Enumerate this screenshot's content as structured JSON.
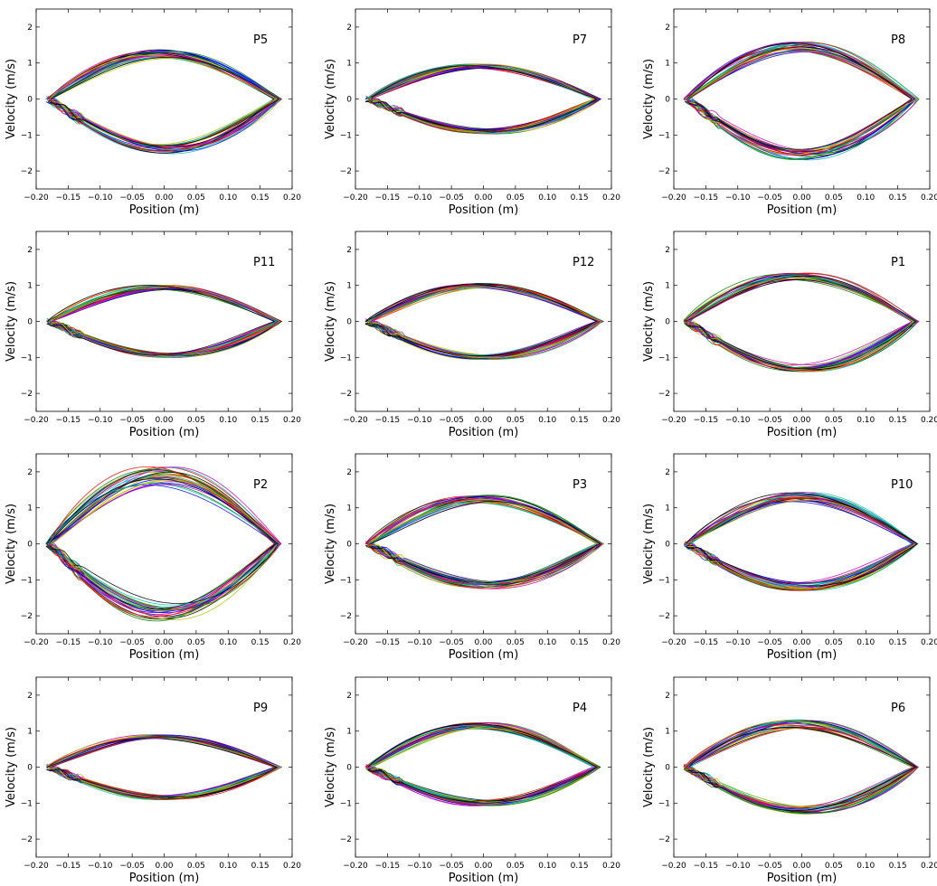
{
  "chart_data": {
    "type": "line",
    "colors": [
      "#0000ff",
      "#008000",
      "#ff0000",
      "#00bfbf",
      "#bf00bf",
      "#bfbf00",
      "#000000"
    ],
    "xlim": [
      -0.2,
      0.2
    ],
    "ylim": [
      -2.5,
      2.5
    ],
    "xticks": [
      "−0.20",
      "−0.15",
      "−0.10",
      "−0.05",
      "0.00",
      "0.05",
      "0.10",
      "0.15",
      "0.20"
    ],
    "xtick_values": [
      -0.2,
      -0.15,
      -0.1,
      -0.05,
      0,
      0.05,
      0.1,
      0.15,
      0.2
    ],
    "yticks": [
      "2",
      "1",
      "0",
      "−1",
      "−2"
    ],
    "ytick_values": [
      2,
      1,
      0,
      -1,
      -2
    ],
    "xlabel": "Position (m)",
    "ylabel": "Velocity (m/s)",
    "panels": [
      {
        "title": "P5",
        "x_start": -0.18,
        "x_end": 0.175,
        "upper_peak": 1.25,
        "lower_peak": -1.4,
        "spread": 0.1
      },
      {
        "title": "P7",
        "x_start": -0.18,
        "x_end": 0.175,
        "upper_peak": 0.9,
        "lower_peak": -0.9,
        "spread": 0.08
      },
      {
        "title": "P8",
        "x_start": -0.18,
        "x_end": 0.175,
        "upper_peak": 1.45,
        "lower_peak": -1.55,
        "spread": 0.1
      },
      {
        "title": "P11",
        "x_start": -0.18,
        "x_end": 0.175,
        "upper_peak": 0.95,
        "lower_peak": -0.95,
        "spread": 0.07
      },
      {
        "title": "P12",
        "x_start": -0.18,
        "x_end": 0.18,
        "upper_peak": 1.0,
        "lower_peak": -1.0,
        "spread": 0.07
      },
      {
        "title": "P1",
        "x_start": -0.18,
        "x_end": 0.175,
        "upper_peak": 1.25,
        "lower_peak": -1.3,
        "spread": 0.08
      },
      {
        "title": "P2",
        "x_start": -0.18,
        "x_end": 0.175,
        "upper_peak": 1.9,
        "lower_peak": -1.9,
        "spread": 0.14
      },
      {
        "title": "P3",
        "x_start": -0.18,
        "x_end": 0.18,
        "upper_peak": 1.25,
        "lower_peak": -1.15,
        "spread": 0.09
      },
      {
        "title": "P10",
        "x_start": -0.18,
        "x_end": 0.175,
        "upper_peak": 1.3,
        "lower_peak": -1.2,
        "spread": 0.1
      },
      {
        "title": "P9",
        "x_start": -0.18,
        "x_end": 0.175,
        "upper_peak": 0.85,
        "lower_peak": -0.85,
        "spread": 0.07
      },
      {
        "title": "P4",
        "x_start": -0.18,
        "x_end": 0.175,
        "upper_peak": 1.15,
        "lower_peak": -1.0,
        "spread": 0.08
      },
      {
        "title": "P6",
        "x_start": -0.18,
        "x_end": 0.175,
        "upper_peak": 1.2,
        "lower_peak": -1.2,
        "spread": 0.1
      }
    ]
  }
}
